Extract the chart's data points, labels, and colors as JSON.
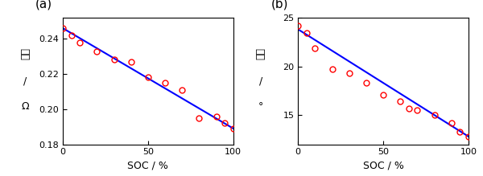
{
  "plot_a": {
    "label": "(a)",
    "x_data": [
      0,
      5,
      10,
      20,
      30,
      40,
      50,
      60,
      70,
      80,
      90,
      95,
      100
    ],
    "y_data": [
      0.246,
      0.242,
      0.238,
      0.233,
      0.228,
      0.227,
      0.218,
      0.215,
      0.211,
      0.195,
      0.196,
      0.192,
      0.189
    ],
    "fit_x": [
      0,
      100
    ],
    "fit_y": [
      0.246,
      0.189
    ],
    "ylabel_chinese": "幅値",
    "ylabel_slash": "/",
    "ylabel_unit": "Ω",
    "xlabel": "SOC / %",
    "ylim": [
      0.18,
      0.252
    ],
    "xlim": [
      0,
      100
    ],
    "yticks": [
      0.18,
      0.2,
      0.22,
      0.24
    ],
    "xticks": [
      0,
      50,
      100
    ]
  },
  "plot_b": {
    "label": "(b)",
    "x_data": [
      0,
      5,
      10,
      20,
      30,
      40,
      50,
      60,
      65,
      70,
      80,
      90,
      95,
      100
    ],
    "y_data": [
      24.2,
      23.4,
      21.9,
      19.7,
      19.3,
      18.3,
      17.1,
      16.4,
      15.7,
      15.5,
      15.0,
      14.2,
      13.3,
      12.8
    ],
    "fit_x": [
      0,
      100
    ],
    "fit_y": [
      23.8,
      12.8
    ],
    "ylabel_chinese": "相位",
    "ylabel_slash": "/",
    "ylabel_unit": "°",
    "xlabel": "SOC / %",
    "ylim": [
      12,
      25
    ],
    "xlim": [
      0,
      100
    ],
    "yticks": [
      15,
      20,
      25
    ],
    "xticks": [
      0,
      50,
      100
    ]
  },
  "marker_color": "#FF0000",
  "line_color": "#0000FF",
  "marker_size": 5,
  "line_width": 1.5,
  "font_size_label": 9,
  "font_size_tick": 8,
  "font_size_panel": 11,
  "font_size_ylabel": 9,
  "bg_color": "#FFFFFF"
}
